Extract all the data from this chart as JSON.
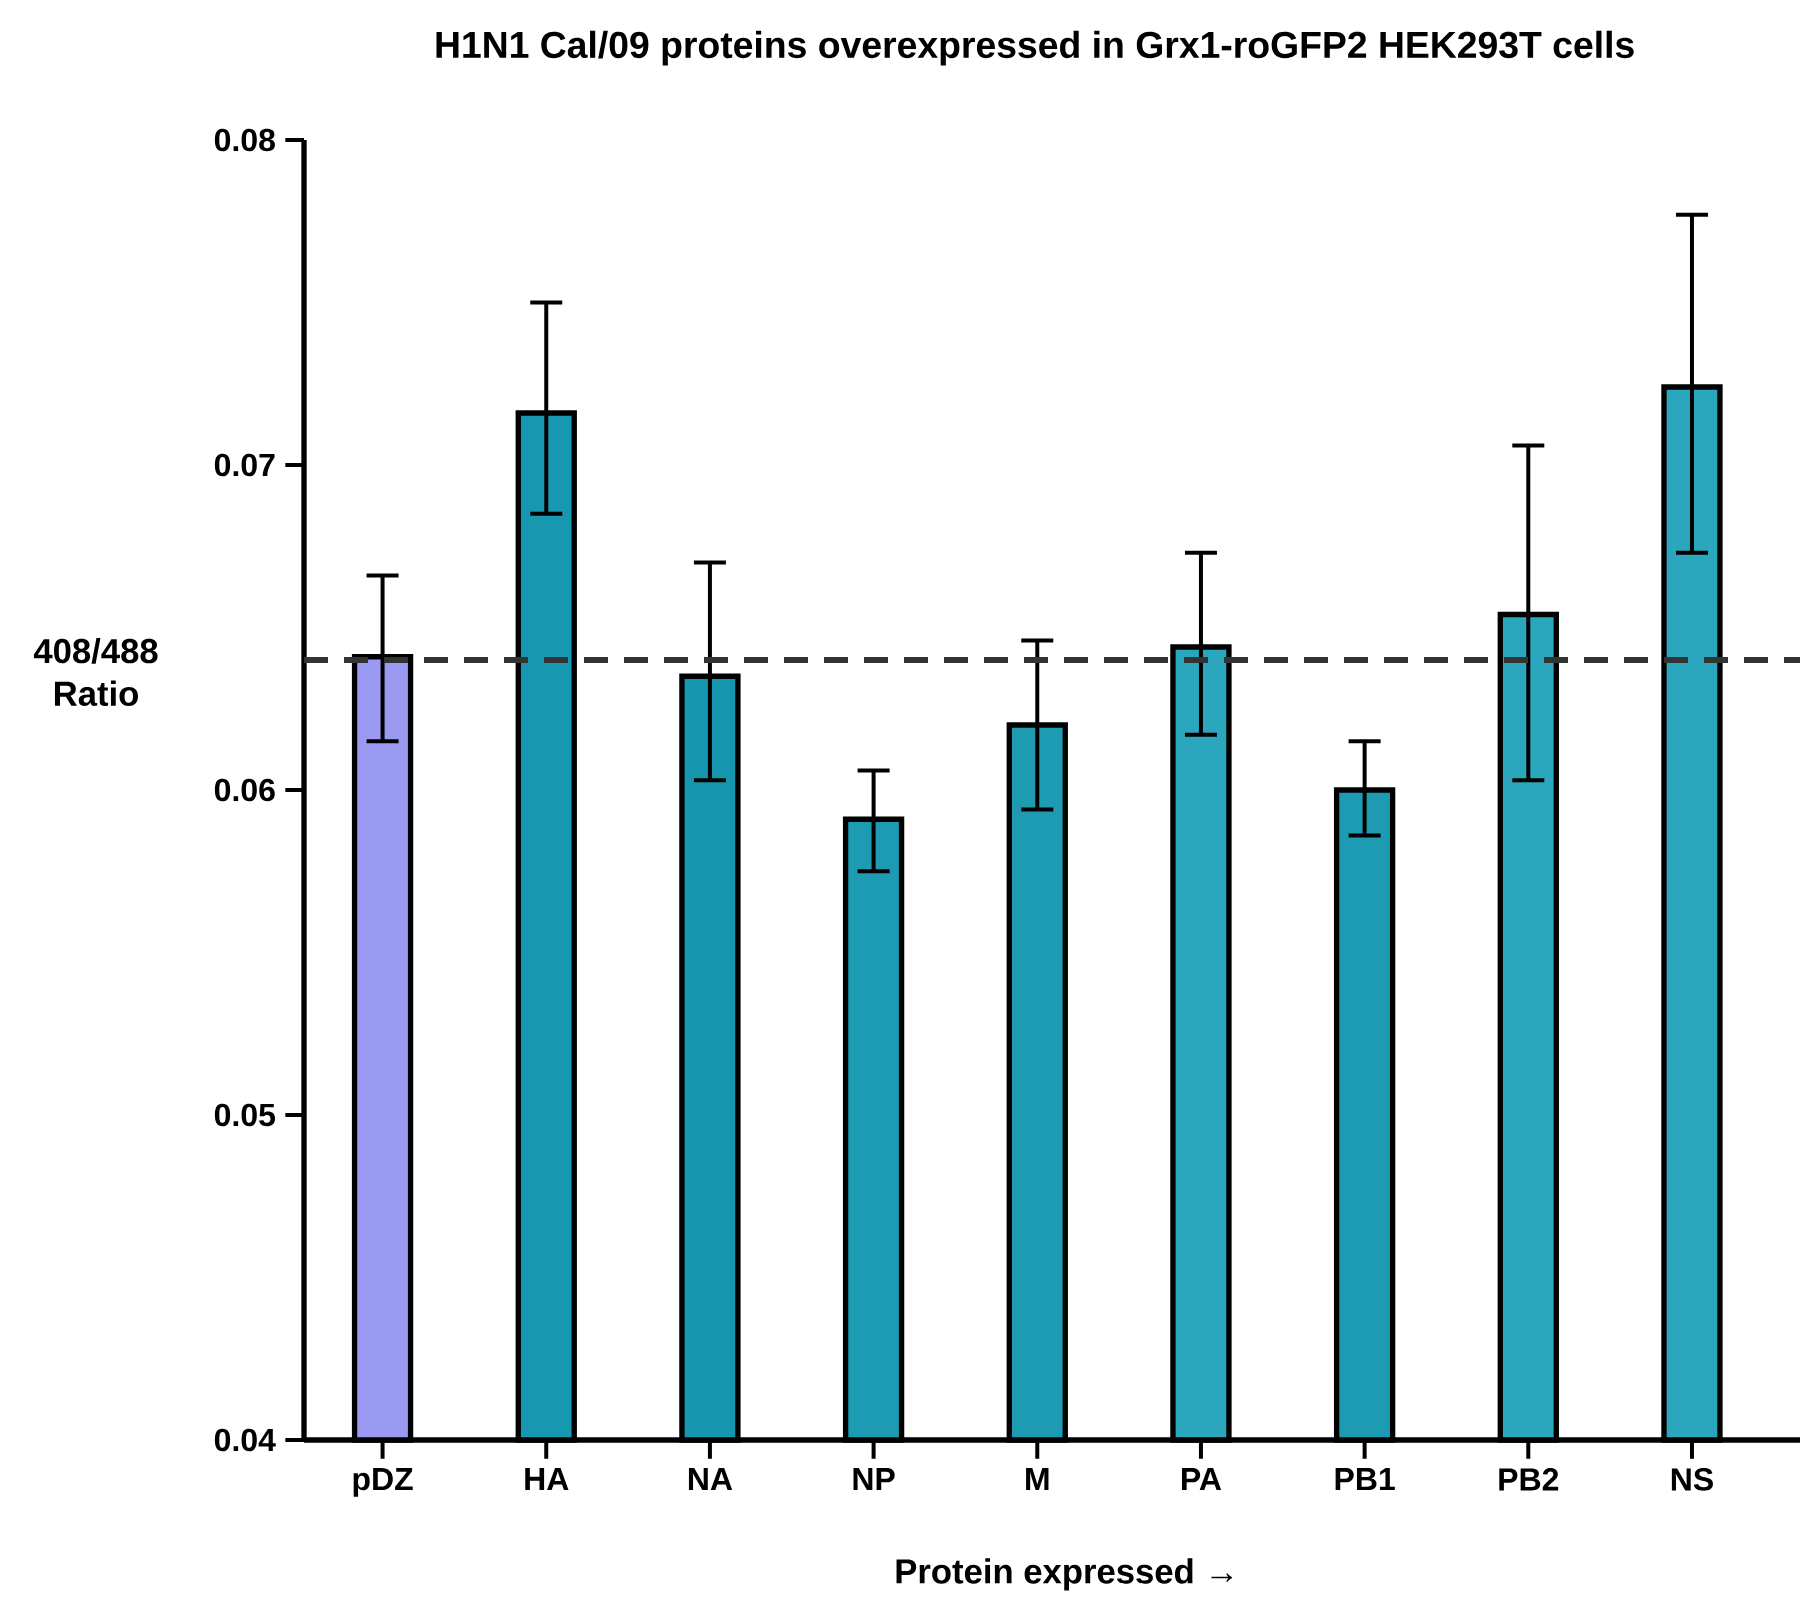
{
  "chart_data": {
    "type": "bar",
    "title": "H1N1 Cal/09 proteins overexpressed in Grx1-roGFP2 HEK293T cells",
    "xlabel": "Protein expressed →",
    "ylabel": "408/488 Ratio",
    "categories": [
      "pDZ",
      "HA",
      "NA",
      "NP",
      "M",
      "PA",
      "PB1",
      "PB2",
      "NS"
    ],
    "values": [
      0.0641,
      0.0716,
      0.0635,
      0.0591,
      0.062,
      0.0644,
      0.06,
      0.0654,
      0.0724
    ],
    "errors": [
      [
        0.0615,
        0.0666
      ],
      [
        0.0685,
        0.075
      ],
      [
        0.0603,
        0.067
      ],
      [
        0.0575,
        0.0606
      ],
      [
        0.0594,
        0.0646
      ],
      [
        0.0617,
        0.0673
      ],
      [
        0.0586,
        0.0615
      ],
      [
        0.0603,
        0.0706
      ],
      [
        0.0673,
        0.0777
      ]
    ],
    "colors": [
      "#9a9af2",
      "#1797b0",
      "#1696ae",
      "#1c9bb2",
      "#1c9bb2",
      "#2aa6bd",
      "#1c9bb2",
      "#2aa6bd",
      "#2aa6bd"
    ],
    "ylim": [
      0.04,
      0.08
    ],
    "yticks": [
      0.04,
      0.05,
      0.06,
      0.07,
      0.08
    ],
    "ref_lines": [
      {
        "axis": "y",
        "value": 0.064,
        "line_style": "dashed",
        "color": "#333333"
      }
    ]
  }
}
